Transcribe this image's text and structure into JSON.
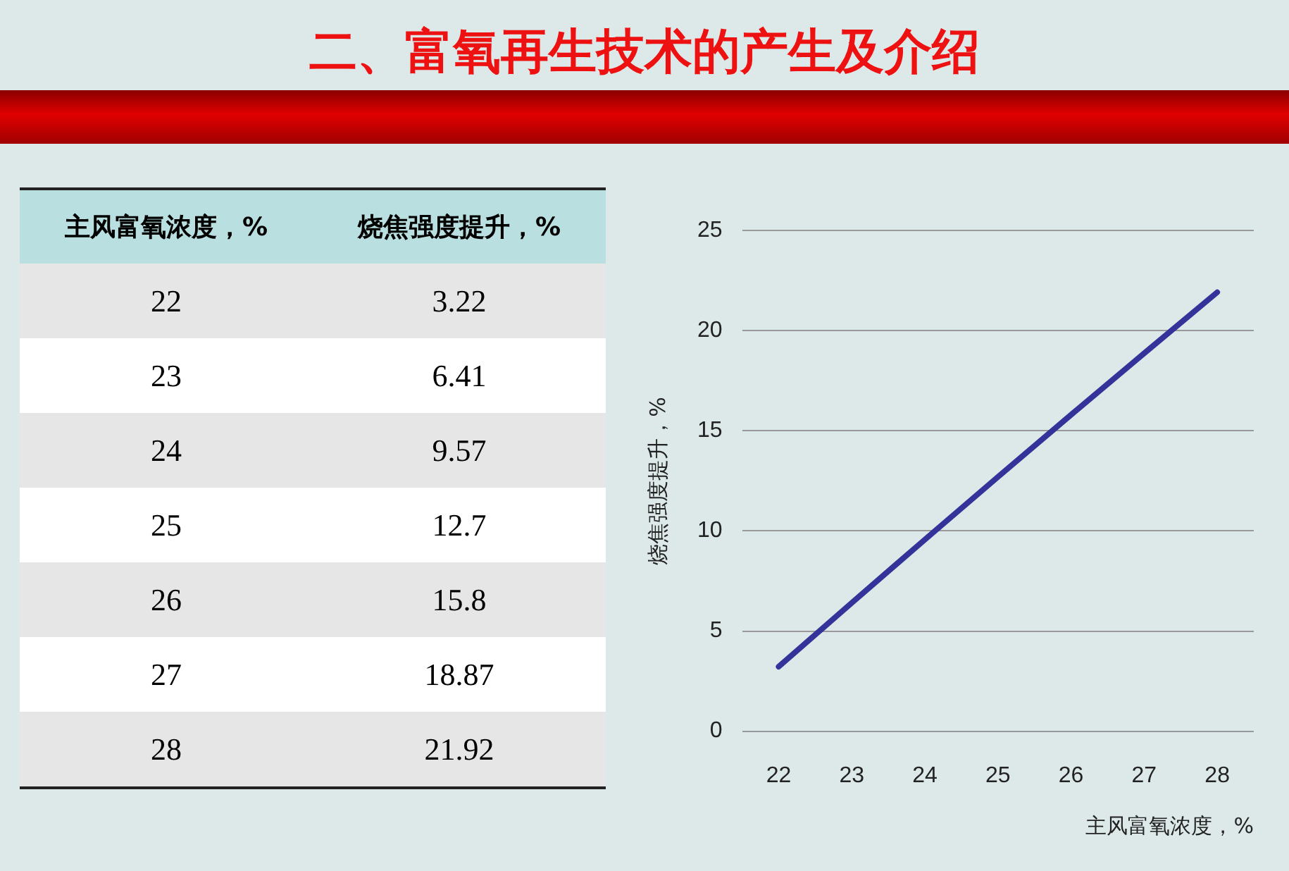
{
  "chart_data": {
    "type": "line",
    "title": "二、富氧再生技术的产生及介绍",
    "xlabel": "主风富氧浓度，%",
    "ylabel": "烧焦强度提升，%",
    "categories": [
      "22",
      "23",
      "24",
      "25",
      "26",
      "27",
      "28"
    ],
    "series": [
      {
        "color": "#333399",
        "values": [
          3.22,
          6.41,
          9.57,
          12.7,
          15.8,
          18.87,
          21.92
        ]
      }
    ],
    "annotations": [
      "3.22",
      "6.41",
      "9.57",
      "12.7",
      "15.8",
      "18.87",
      "21.92"
    ],
    "ylim": [
      0,
      25
    ],
    "yticks": [
      0,
      5,
      10,
      15,
      20,
      25
    ],
    "grid": "y",
    "marker": "none",
    "line_style": "solid"
  }
}
